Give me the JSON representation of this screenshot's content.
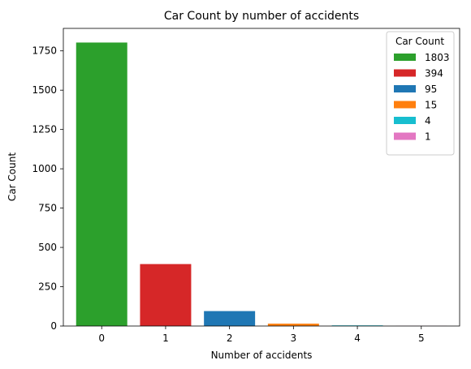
{
  "chart_data": {
    "type": "bar",
    "title": "Car Count by number of accidents",
    "xlabel": "Number of accidents",
    "ylabel": "Car Count",
    "categories": [
      "0",
      "1",
      "2",
      "3",
      "4",
      "5"
    ],
    "values": [
      1803,
      394,
      95,
      15,
      4,
      1
    ],
    "colors": [
      "#2ca02c",
      "#d62728",
      "#1f77b4",
      "#ff7f0e",
      "#17becf",
      "#e377c2"
    ],
    "ylim": [
      0,
      1893
    ],
    "yticks": [
      0,
      250,
      500,
      750,
      1000,
      1250,
      1500,
      1750
    ],
    "grid": false,
    "legend": {
      "title": "Car Count",
      "placement": "top-right",
      "entries": [
        "1803",
        "394",
        "95",
        "15",
        "4",
        "1"
      ]
    }
  }
}
